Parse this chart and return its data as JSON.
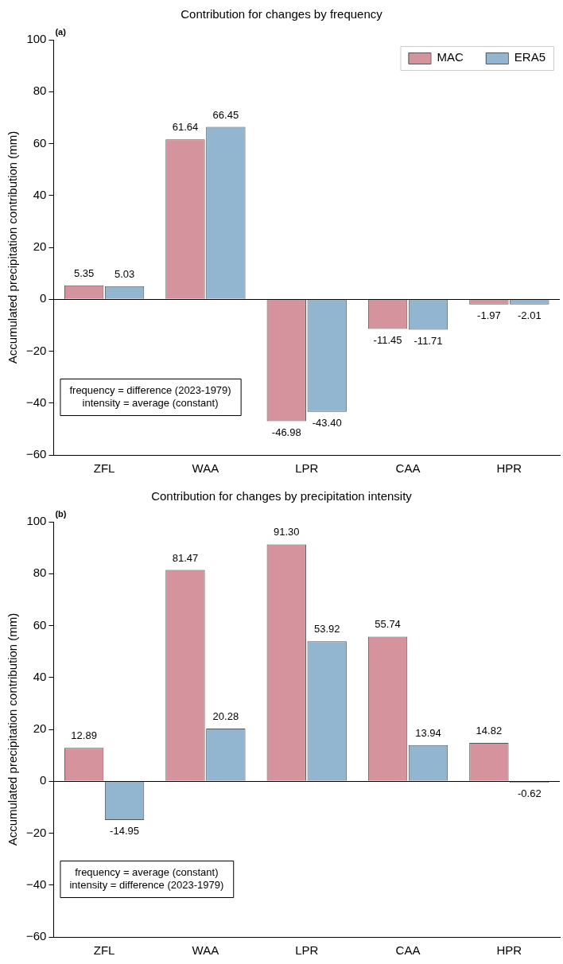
{
  "chart_data": [
    {
      "type": "bar",
      "title": "Contribution for changes by frequency",
      "ylabel": "Accumulated precipitation contribution (mm)",
      "categories": [
        "ZFL",
        "WAA",
        "LPR",
        "CAA",
        "HPR"
      ],
      "series": [
        {
          "name": "MAC",
          "color": "#d4939d",
          "values": [
            5.35,
            61.64,
            -46.98,
            -11.45,
            -1.97
          ],
          "value_labels": [
            "5.35",
            "61.64",
            "-46.98",
            "-11.45",
            "-1.97"
          ]
        },
        {
          "name": "ERA5",
          "color": "#92b6d0",
          "values": [
            5.03,
            66.45,
            -43.4,
            -11.71,
            -2.01
          ],
          "value_labels": [
            "5.03",
            "66.45",
            "-43.40",
            "-11.71",
            "-2.01"
          ]
        }
      ],
      "ylim": [
        -60,
        100
      ],
      "yticks": [
        -60,
        -40,
        -20,
        0,
        20,
        40,
        60,
        80,
        100
      ],
      "grid": false,
      "legend": "top right",
      "ref_lines": [
        {
          "axis": "y",
          "value": 0,
          "color": "#000000"
        }
      ],
      "annotations": [
        "(a)",
        "frequency = difference (2023-1979)",
        "intensity = average (constant)"
      ]
    },
    {
      "type": "bar",
      "title": "Contribution for changes by precipitation intensity",
      "ylabel": "Accumulated precipitation contribution (mm)",
      "categories": [
        "ZFL",
        "WAA",
        "LPR",
        "CAA",
        "HPR"
      ],
      "series": [
        {
          "color": "#d4939d",
          "values": [
            12.89,
            81.47,
            91.3,
            55.74,
            14.82
          ],
          "value_labels": [
            "12.89",
            "81.47",
            "91.30",
            "55.74",
            "14.82"
          ]
        },
        {
          "color": "#92b6d0",
          "values": [
            -14.95,
            20.28,
            53.92,
            13.94,
            -0.62
          ],
          "value_labels": [
            "-14.95",
            "20.28",
            "53.92",
            "13.94",
            "-0.62"
          ]
        }
      ],
      "ylim": [
        -60,
        100
      ],
      "yticks": [
        -60,
        -40,
        -20,
        0,
        20,
        40,
        60,
        80,
        100
      ],
      "grid": false,
      "legend": false,
      "ref_lines": [
        {
          "axis": "y",
          "value": 0,
          "color": "#000000"
        }
      ],
      "annotations": [
        "(b)",
        "frequency = average (constant)",
        "intensity = difference (2023-1979)"
      ]
    }
  ]
}
